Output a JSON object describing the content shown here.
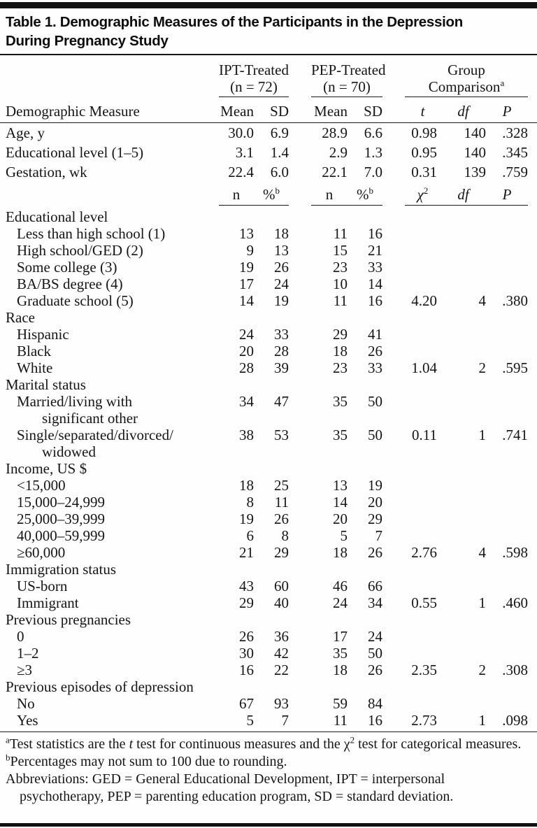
{
  "table": {
    "title_line1": "Table 1. Demographic Measures of the Participants in the Depression",
    "title_line2": "During Pregnancy Study",
    "row_header_label": "Demographic Measure",
    "groups": [
      {
        "line1": "IPT-Treated",
        "line2": "(n = 72)",
        "sup": ""
      },
      {
        "line1": "PEP-Treated",
        "line2": "(n = 70)",
        "sup": ""
      },
      {
        "line1": "Group",
        "line2": "Comparison",
        "sup": "a"
      }
    ],
    "continuous_cols": [
      {
        "label": "Mean",
        "italic": false,
        "sup": ""
      },
      {
        "label": "SD",
        "italic": false,
        "sup": ""
      },
      {
        "label": "Mean",
        "italic": false,
        "sup": ""
      },
      {
        "label": "SD",
        "italic": false,
        "sup": ""
      },
      {
        "label": "t",
        "italic": true,
        "sup": ""
      },
      {
        "label": "df",
        "italic": true,
        "sup": ""
      },
      {
        "label": "P",
        "italic": true,
        "sup": ""
      }
    ],
    "continuous_rows": [
      {
        "label": "Age, y",
        "cells": [
          "30.0",
          "6.9",
          "28.9",
          "6.6",
          "0.98",
          "140",
          ".328"
        ]
      },
      {
        "label": "Educational level (1–5)",
        "cells": [
          "3.1",
          "1.4",
          "2.9",
          "1.3",
          "0.95",
          "140",
          ".345"
        ]
      },
      {
        "label": "Gestation, wk",
        "cells": [
          "22.4",
          "6.0",
          "22.1",
          "7.0",
          "0.31",
          "139",
          ".759"
        ]
      }
    ],
    "categorical_cols": [
      {
        "label": "n",
        "italic": false,
        "sup": ""
      },
      {
        "label": "%",
        "italic": false,
        "sup": "b"
      },
      {
        "label": "n",
        "italic": false,
        "sup": ""
      },
      {
        "label": "%",
        "italic": false,
        "sup": "b"
      },
      {
        "label": "χ",
        "italic": true,
        "sup": "2"
      },
      {
        "label": "df",
        "italic": true,
        "sup": ""
      },
      {
        "label": "P",
        "italic": true,
        "sup": ""
      }
    ],
    "categorical_rows": [
      {
        "label": "Educational level",
        "section": true,
        "cells": [
          "",
          "",
          "",
          "",
          "",
          "",
          ""
        ]
      },
      {
        "label": "Less than high school (1)",
        "indent": 1,
        "cells": [
          "13",
          "18",
          "11",
          "16",
          "",
          "",
          ""
        ]
      },
      {
        "label": "High school/GED (2)",
        "indent": 1,
        "cells": [
          "9",
          "13",
          "15",
          "21",
          "",
          "",
          ""
        ]
      },
      {
        "label": "Some college (3)",
        "indent": 1,
        "cells": [
          "19",
          "26",
          "23",
          "33",
          "",
          "",
          ""
        ]
      },
      {
        "label": "BA/BS degree (4)",
        "indent": 1,
        "cells": [
          "17",
          "24",
          "10",
          "14",
          "",
          "",
          ""
        ]
      },
      {
        "label": "Graduate school (5)",
        "indent": 1,
        "cells": [
          "14",
          "19",
          "11",
          "16",
          "4.20",
          "4",
          ".380"
        ]
      },
      {
        "label": "Race",
        "section": true,
        "cells": [
          "",
          "",
          "",
          "",
          "",
          "",
          ""
        ]
      },
      {
        "label": "Hispanic",
        "indent": 1,
        "cells": [
          "24",
          "33",
          "29",
          "41",
          "",
          "",
          ""
        ]
      },
      {
        "label": "Black",
        "indent": 1,
        "cells": [
          "20",
          "28",
          "18",
          "26",
          "",
          "",
          ""
        ]
      },
      {
        "label": "White",
        "indent": 1,
        "cells": [
          "28",
          "39",
          "23",
          "33",
          "1.04",
          "2",
          ".595"
        ]
      },
      {
        "label": "Marital status",
        "section": true,
        "cells": [
          "",
          "",
          "",
          "",
          "",
          "",
          ""
        ]
      },
      {
        "label": "Married/living with",
        "label2": "significant other",
        "indent": 1,
        "cells": [
          "34",
          "47",
          "35",
          "50",
          "",
          "",
          ""
        ]
      },
      {
        "label": "Single/separated/divorced/",
        "label2": "widowed",
        "indent": 1,
        "cells": [
          "38",
          "53",
          "35",
          "50",
          "0.11",
          "1",
          ".741"
        ]
      },
      {
        "label": "Income, US $",
        "section": true,
        "cells": [
          "",
          "",
          "",
          "",
          "",
          "",
          ""
        ]
      },
      {
        "label": "<15,000",
        "indent": 1,
        "cells": [
          "18",
          "25",
          "13",
          "19",
          "",
          "",
          ""
        ]
      },
      {
        "label": "15,000–24,999",
        "indent": 1,
        "cells": [
          "8",
          "11",
          "14",
          "20",
          "",
          "",
          ""
        ]
      },
      {
        "label": "25,000–39,999",
        "indent": 1,
        "cells": [
          "19",
          "26",
          "20",
          "29",
          "",
          "",
          ""
        ]
      },
      {
        "label": "40,000–59,999",
        "indent": 1,
        "cells": [
          "6",
          "8",
          "5",
          "7",
          "",
          "",
          ""
        ]
      },
      {
        "label": "≥60,000",
        "indent": 1,
        "cells": [
          "21",
          "29",
          "18",
          "26",
          "2.76",
          "4",
          ".598"
        ]
      },
      {
        "label": "Immigration status",
        "section": true,
        "cells": [
          "",
          "",
          "",
          "",
          "",
          "",
          ""
        ]
      },
      {
        "label": "US-born",
        "indent": 1,
        "cells": [
          "43",
          "60",
          "46",
          "66",
          "",
          "",
          ""
        ]
      },
      {
        "label": "Immigrant",
        "indent": 1,
        "cells": [
          "29",
          "40",
          "24",
          "34",
          "0.55",
          "1",
          ".460"
        ]
      },
      {
        "label": "Previous pregnancies",
        "section": true,
        "cells": [
          "",
          "",
          "",
          "",
          "",
          "",
          ""
        ]
      },
      {
        "label": "0",
        "indent": 1,
        "cells": [
          "26",
          "36",
          "17",
          "24",
          "",
          "",
          ""
        ]
      },
      {
        "label": "1–2",
        "indent": 1,
        "cells": [
          "30",
          "42",
          "35",
          "50",
          "",
          "",
          ""
        ]
      },
      {
        "label": "≥3",
        "indent": 1,
        "cells": [
          "16",
          "22",
          "18",
          "26",
          "2.35",
          "2",
          ".308"
        ]
      },
      {
        "label": "Previous episodes of depression",
        "section": true,
        "cells": [
          "",
          "",
          "",
          "",
          "",
          "",
          ""
        ]
      },
      {
        "label": "No",
        "indent": 1,
        "cells": [
          "67",
          "93",
          "59",
          "84",
          "",
          "",
          ""
        ]
      },
      {
        "label": "Yes",
        "indent": 1,
        "cells": [
          "5",
          "7",
          "11",
          "16",
          "2.73",
          "1",
          ".098"
        ]
      }
    ],
    "footnotes": [
      {
        "segments": [
          {
            "t": "a",
            "sup": true
          },
          {
            "t": "Test statistics are the "
          },
          {
            "t": "t",
            "i": true
          },
          {
            "t": " test for continuous measures and the "
          },
          {
            "t": "χ"
          },
          {
            "t": "2",
            "sup": true
          },
          {
            "t": " test for categorical measures."
          }
        ]
      },
      {
        "segments": [
          {
            "t": "b",
            "sup": true
          },
          {
            "t": "Percentages may not sum to 100 due to rounding."
          }
        ]
      },
      {
        "segments": [
          {
            "t": "Abbreviations: GED = General Educational Development, IPT = interpersonal psychotherapy,  PEP = parenting education program, SD = standard deviation."
          }
        ]
      }
    ]
  }
}
